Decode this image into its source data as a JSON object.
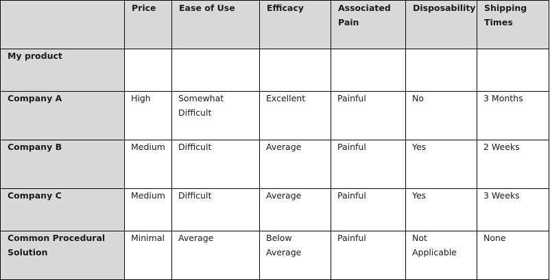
{
  "table": {
    "columns": [
      "",
      "Price",
      "Ease of Use",
      "Efficacy",
      "Associated Pain",
      "Disposability",
      "Shipping Times"
    ],
    "rows": [
      {
        "label": "My product",
        "cells": [
          "",
          "",
          "",
          "",
          "",
          ""
        ]
      },
      {
        "label": "Company A",
        "cells": [
          "High",
          "Somewhat Difficult",
          "Excellent",
          "Painful",
          "No",
          "3 Months"
        ]
      },
      {
        "label": "Company B",
        "cells": [
          "Medium",
          "Difficult",
          "Average",
          "Painful",
          "Yes",
          "2 Weeks"
        ]
      },
      {
        "label": "Company C",
        "cells": [
          "Medium",
          "Difficult",
          "Average",
          "Painful",
          "Yes",
          "3 Weeks"
        ]
      },
      {
        "label": "Common Procedural Solution",
        "cells": [
          "Minimal",
          "Average",
          "Below Average",
          "Painful",
          "Not Applicable",
          "None"
        ]
      }
    ],
    "colors": {
      "header_shade": "#d9d9d9",
      "border": "#000000"
    }
  }
}
